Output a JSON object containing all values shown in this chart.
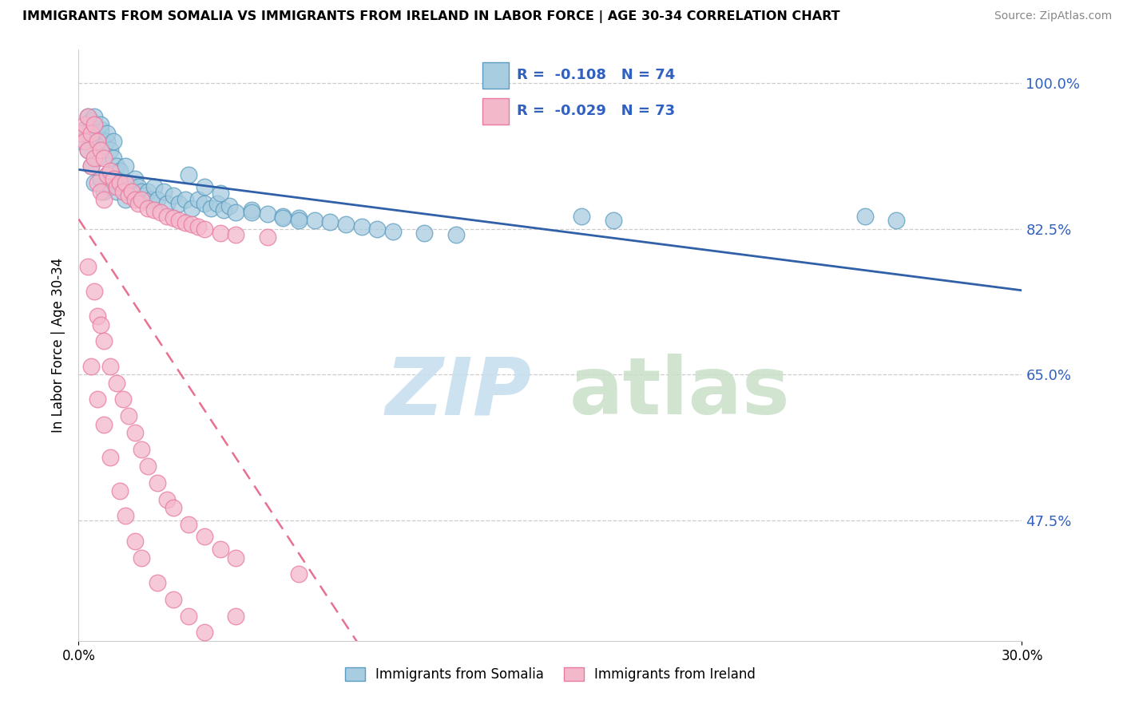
{
  "title": "IMMIGRANTS FROM SOMALIA VS IMMIGRANTS FROM IRELAND IN LABOR FORCE | AGE 30-34 CORRELATION CHART",
  "source": "Source: ZipAtlas.com",
  "ylabel": "In Labor Force | Age 30-34",
  "xlim": [
    0.0,
    0.3
  ],
  "ylim": [
    0.33,
    1.04
  ],
  "ytick_labels": [
    "100.0%",
    "82.5%",
    "65.0%",
    "47.5%"
  ],
  "ytick_values": [
    1.0,
    0.825,
    0.65,
    0.475
  ],
  "legend_r_somalia": "-0.108",
  "legend_n_somalia": "74",
  "legend_r_ireland": "-0.029",
  "legend_n_ireland": "73",
  "somalia_color": "#a8cce0",
  "ireland_color": "#f4b8cb",
  "somalia_edge": "#5b9dc0",
  "ireland_edge": "#e87aa0",
  "trend_somalia_color": "#3060a8",
  "trend_ireland_color": "#e87090",
  "somalia_x": [
    0.001,
    0.002,
    0.003,
    0.003,
    0.004,
    0.004,
    0.005,
    0.005,
    0.006,
    0.006,
    0.007,
    0.007,
    0.008,
    0.008,
    0.009,
    0.009,
    0.01,
    0.01,
    0.011,
    0.012,
    0.012,
    0.013,
    0.014,
    0.015,
    0.015,
    0.016,
    0.017,
    0.018,
    0.019,
    0.02,
    0.021,
    0.022,
    0.023,
    0.024,
    0.025,
    0.027,
    0.028,
    0.03,
    0.032,
    0.034,
    0.036,
    0.038,
    0.04,
    0.042,
    0.044,
    0.046,
    0.048,
    0.05,
    0.055,
    0.06,
    0.065,
    0.07,
    0.075,
    0.08,
    0.085,
    0.09,
    0.095,
    0.1,
    0.11,
    0.12,
    0.035,
    0.04,
    0.045,
    0.055,
    0.065,
    0.07,
    0.16,
    0.17,
    0.25,
    0.26,
    0.005,
    0.007,
    0.009,
    0.011
  ],
  "somalia_y": [
    0.93,
    0.945,
    0.96,
    0.92,
    0.955,
    0.9,
    0.94,
    0.88,
    0.935,
    0.91,
    0.945,
    0.885,
    0.925,
    0.87,
    0.93,
    0.89,
    0.92,
    0.875,
    0.91,
    0.9,
    0.87,
    0.895,
    0.88,
    0.9,
    0.86,
    0.88,
    0.87,
    0.885,
    0.875,
    0.87,
    0.865,
    0.87,
    0.86,
    0.875,
    0.86,
    0.87,
    0.855,
    0.865,
    0.855,
    0.86,
    0.85,
    0.86,
    0.855,
    0.85,
    0.855,
    0.848,
    0.852,
    0.845,
    0.848,
    0.843,
    0.84,
    0.838,
    0.835,
    0.833,
    0.83,
    0.828,
    0.825,
    0.822,
    0.82,
    0.818,
    0.89,
    0.875,
    0.868,
    0.845,
    0.838,
    0.835,
    0.84,
    0.835,
    0.84,
    0.835,
    0.96,
    0.95,
    0.94,
    0.93
  ],
  "ireland_x": [
    0.001,
    0.002,
    0.002,
    0.003,
    0.003,
    0.004,
    0.004,
    0.005,
    0.005,
    0.006,
    0.006,
    0.007,
    0.007,
    0.008,
    0.008,
    0.009,
    0.01,
    0.011,
    0.012,
    0.013,
    0.014,
    0.015,
    0.016,
    0.017,
    0.018,
    0.019,
    0.02,
    0.022,
    0.024,
    0.026,
    0.028,
    0.03,
    0.032,
    0.034,
    0.036,
    0.038,
    0.04,
    0.045,
    0.05,
    0.06,
    0.003,
    0.005,
    0.006,
    0.007,
    0.008,
    0.01,
    0.012,
    0.014,
    0.016,
    0.018,
    0.02,
    0.022,
    0.025,
    0.028,
    0.03,
    0.035,
    0.04,
    0.045,
    0.05,
    0.07,
    0.004,
    0.006,
    0.008,
    0.01,
    0.013,
    0.015,
    0.018,
    0.02,
    0.025,
    0.03,
    0.035,
    0.04,
    0.05
  ],
  "ireland_y": [
    0.94,
    0.93,
    0.95,
    0.92,
    0.96,
    0.9,
    0.94,
    0.91,
    0.95,
    0.88,
    0.93,
    0.87,
    0.92,
    0.86,
    0.91,
    0.89,
    0.895,
    0.885,
    0.875,
    0.88,
    0.87,
    0.88,
    0.865,
    0.87,
    0.86,
    0.855,
    0.86,
    0.85,
    0.848,
    0.845,
    0.84,
    0.838,
    0.835,
    0.832,
    0.83,
    0.828,
    0.825,
    0.82,
    0.818,
    0.815,
    0.78,
    0.75,
    0.72,
    0.71,
    0.69,
    0.66,
    0.64,
    0.62,
    0.6,
    0.58,
    0.56,
    0.54,
    0.52,
    0.5,
    0.49,
    0.47,
    0.455,
    0.44,
    0.43,
    0.41,
    0.66,
    0.62,
    0.59,
    0.55,
    0.51,
    0.48,
    0.45,
    0.43,
    0.4,
    0.38,
    0.36,
    0.34,
    0.36
  ]
}
